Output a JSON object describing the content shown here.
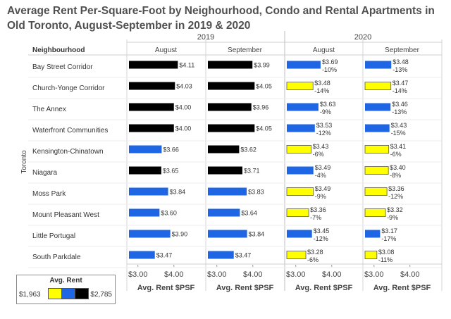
{
  "title": {
    "line1": "Average Rent Per-Square-Foot by Neighourhood, Condo and Rental Apartments in",
    "line2": "Old Toronto, August-September in 2019 & 2020"
  },
  "legend": {
    "title": "Avg. Rent",
    "min": "$1,963",
    "max": "$2,785",
    "colors": {
      "low": "#ffff00",
      "mid": "#1f66e5",
      "high": "#000000"
    }
  },
  "chart_data": {
    "type": "bar",
    "orientation": "horizontal",
    "row_header": "Neighbourhood",
    "row_group_label": "Toronto",
    "xlabel": "Avg. Rent $PSF",
    "xticks": [
      "$3.00",
      "$4.00"
    ],
    "xlim": [
      2.75,
      4.6
    ],
    "years": [
      "2019",
      "2020"
    ],
    "panels": [
      {
        "year": "2019",
        "month": "August"
      },
      {
        "year": "2019",
        "month": "September"
      },
      {
        "year": "2020",
        "month": "August"
      },
      {
        "year": "2020",
        "month": "September"
      }
    ],
    "categories": [
      "Bay Street Corridor",
      "Church-Yonge Corridor",
      "The Annex",
      "Waterfront Communities",
      "Kensington-Chinatown",
      "Niagara",
      "Moss Park",
      "Mount Pleasant West",
      "Little Portugal",
      "South Parkdale"
    ],
    "values": [
      [
        4.11,
        3.99,
        3.69,
        3.48
      ],
      [
        4.03,
        4.05,
        3.48,
        3.47
      ],
      [
        4.0,
        3.96,
        3.63,
        3.46
      ],
      [
        4.0,
        4.05,
        3.53,
        3.43
      ],
      [
        3.66,
        3.62,
        3.43,
        3.41
      ],
      [
        3.65,
        3.71,
        3.49,
        3.4
      ],
      [
        3.84,
        3.83,
        3.49,
        3.36
      ],
      [
        3.6,
        3.64,
        3.36,
        3.32
      ],
      [
        3.9,
        3.84,
        3.45,
        3.17
      ],
      [
        3.47,
        3.47,
        3.28,
        3.08
      ]
    ],
    "value_labels": [
      [
        "$4.11",
        "$3.99",
        "$3.69",
        "$3.48"
      ],
      [
        "$4.03",
        "$4.05",
        "$3.48",
        "$3.47"
      ],
      [
        "$4.00",
        "$3.96",
        "$3.63",
        "$3.46"
      ],
      [
        "$4.00",
        "$4.05",
        "$3.53",
        "$3.43"
      ],
      [
        "$3.66",
        "$3.62",
        "$3.43",
        "$3.41"
      ],
      [
        "$3.65",
        "$3.71",
        "$3.49",
        "$3.40"
      ],
      [
        "$3.84",
        "$3.83",
        "$3.49",
        "$3.36"
      ],
      [
        "$3.60",
        "$3.64",
        "$3.36",
        "$3.32"
      ],
      [
        "$3.90",
        "$3.84",
        "$3.45",
        "$3.17"
      ],
      [
        "$3.47",
        "$3.47",
        "$3.28",
        "$3.08"
      ]
    ],
    "pct_change": [
      [
        null,
        null,
        "-10%",
        "-13%"
      ],
      [
        null,
        null,
        "-14%",
        "-14%"
      ],
      [
        null,
        null,
        "-9%",
        "-13%"
      ],
      [
        null,
        null,
        "-12%",
        "-15%"
      ],
      [
        null,
        null,
        "-6%",
        "-6%"
      ],
      [
        null,
        null,
        "-4%",
        "-8%"
      ],
      [
        null,
        null,
        "-9%",
        "-12%"
      ],
      [
        null,
        null,
        "-7%",
        "-9%"
      ],
      [
        null,
        null,
        "-12%",
        "-17%"
      ],
      [
        null,
        null,
        "-6%",
        "-11%"
      ]
    ],
    "bar_colors": [
      [
        "black",
        "black",
        "blue",
        "blue"
      ],
      [
        "black",
        "black",
        "yellow",
        "yellow"
      ],
      [
        "black",
        "black",
        "blue",
        "blue"
      ],
      [
        "black",
        "black",
        "blue",
        "blue"
      ],
      [
        "blue",
        "black",
        "yellow",
        "yellow"
      ],
      [
        "black",
        "black",
        "blue",
        "yellow"
      ],
      [
        "blue",
        "blue",
        "yellow",
        "yellow"
      ],
      [
        "blue",
        "blue",
        "yellow",
        "yellow"
      ],
      [
        "blue",
        "blue",
        "blue",
        "blue"
      ],
      [
        "blue",
        "blue",
        "yellow",
        "yellow"
      ]
    ],
    "color_map": {
      "black": "#000000",
      "blue": "#1f66e5",
      "yellow": "#ffff00"
    }
  }
}
